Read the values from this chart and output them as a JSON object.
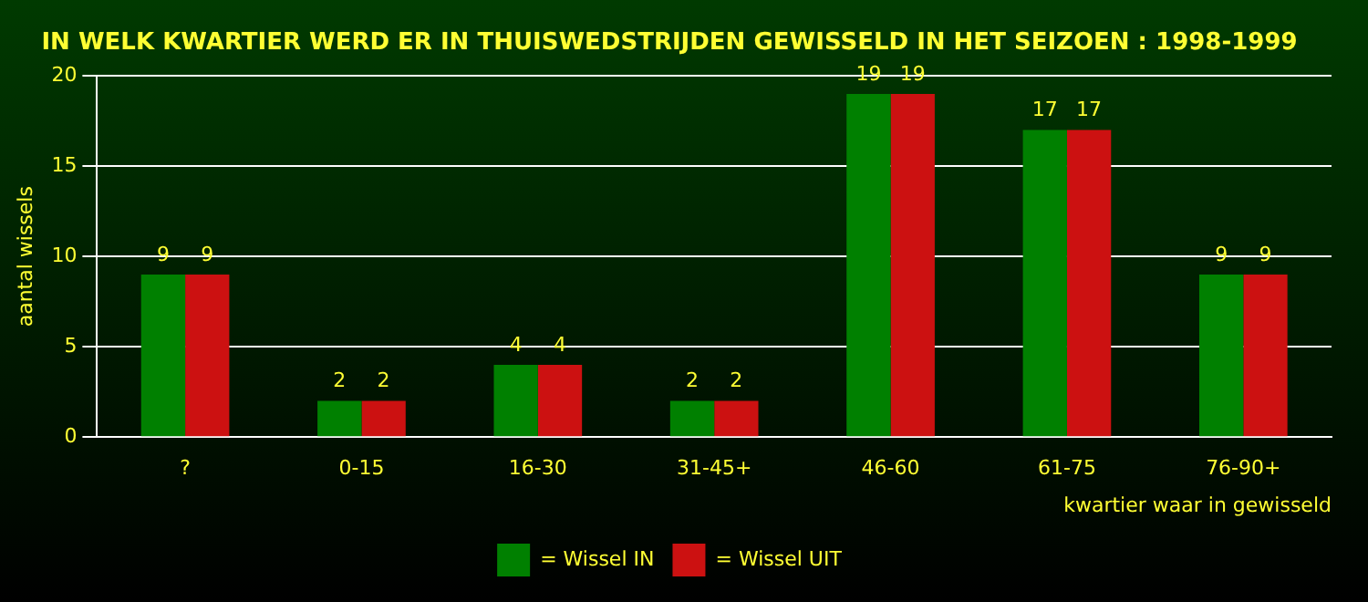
{
  "chart_data": {
    "type": "bar",
    "title": "IN WELK KWARTIER WERD ER IN THUISWEDSTRIJDEN GEWISSELD IN HET SEIZOEN : 1998-1999",
    "xlabel": "kwartier waar in gewisseld",
    "ylabel": "aantal wissels",
    "categories": [
      "?",
      "0-15",
      "16-30",
      "31-45+",
      "46-60",
      "61-75",
      "76-90+"
    ],
    "series": [
      {
        "name": "= Wissel IN",
        "color": "#008000",
        "values": [
          9,
          2,
          4,
          2,
          19,
          17,
          9
        ]
      },
      {
        "name": "= Wissel UIT",
        "color": "#cc1111",
        "values": [
          9,
          2,
          4,
          2,
          19,
          17,
          9
        ]
      }
    ],
    "ylim": [
      0,
      20
    ],
    "yticks": [
      0,
      5,
      10,
      15,
      20
    ],
    "grid": "y",
    "legend": "bottom",
    "data_labels": true
  }
}
